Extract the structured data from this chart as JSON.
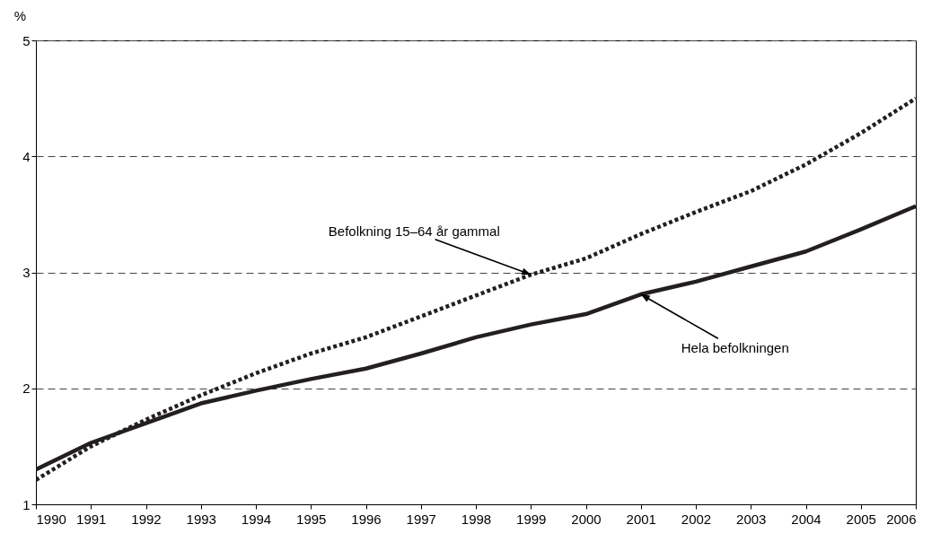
{
  "chart_data": {
    "type": "line",
    "ylabel": "%",
    "x": [
      1990,
      1991,
      1992,
      1993,
      1994,
      1995,
      1996,
      1997,
      1998,
      1999,
      2000,
      2001,
      2002,
      2003,
      2004,
      2005,
      2006
    ],
    "series": [
      {
        "color": "#231f20",
        "line_style": "solid",
        "values": [
          1.3,
          1.53,
          1.7,
          1.87,
          1.98,
          2.08,
          2.17,
          2.3,
          2.44,
          2.55,
          2.64,
          2.81,
          2.92,
          3.05,
          3.18,
          3.37,
          3.57
        ]
      },
      {
        "color": "#231f20",
        "line_style": "dotted",
        "values": [
          1.21,
          1.5,
          1.73,
          1.94,
          2.13,
          2.3,
          2.44,
          2.62,
          2.8,
          2.98,
          3.12,
          3.33,
          3.52,
          3.7,
          3.93,
          4.2,
          4.5
        ]
      }
    ],
    "xlim": [
      1990,
      2006
    ],
    "xticks": [
      1990,
      1991,
      1992,
      1993,
      1994,
      1995,
      1996,
      1997,
      1998,
      1999,
      2000,
      2001,
      2002,
      2003,
      2004,
      2005,
      2006
    ],
    "ylim": [
      1,
      5
    ],
    "yticks": [
      1,
      2,
      3,
      4,
      5
    ],
    "grid": "y",
    "marker": "none",
    "annotations": [
      {
        "text": "Befolkning 15–64 år gammal",
        "x": 1999,
        "y": 2.98
      },
      {
        "text": "Hela befolkningen",
        "x": 2001,
        "y": 2.81
      }
    ]
  }
}
